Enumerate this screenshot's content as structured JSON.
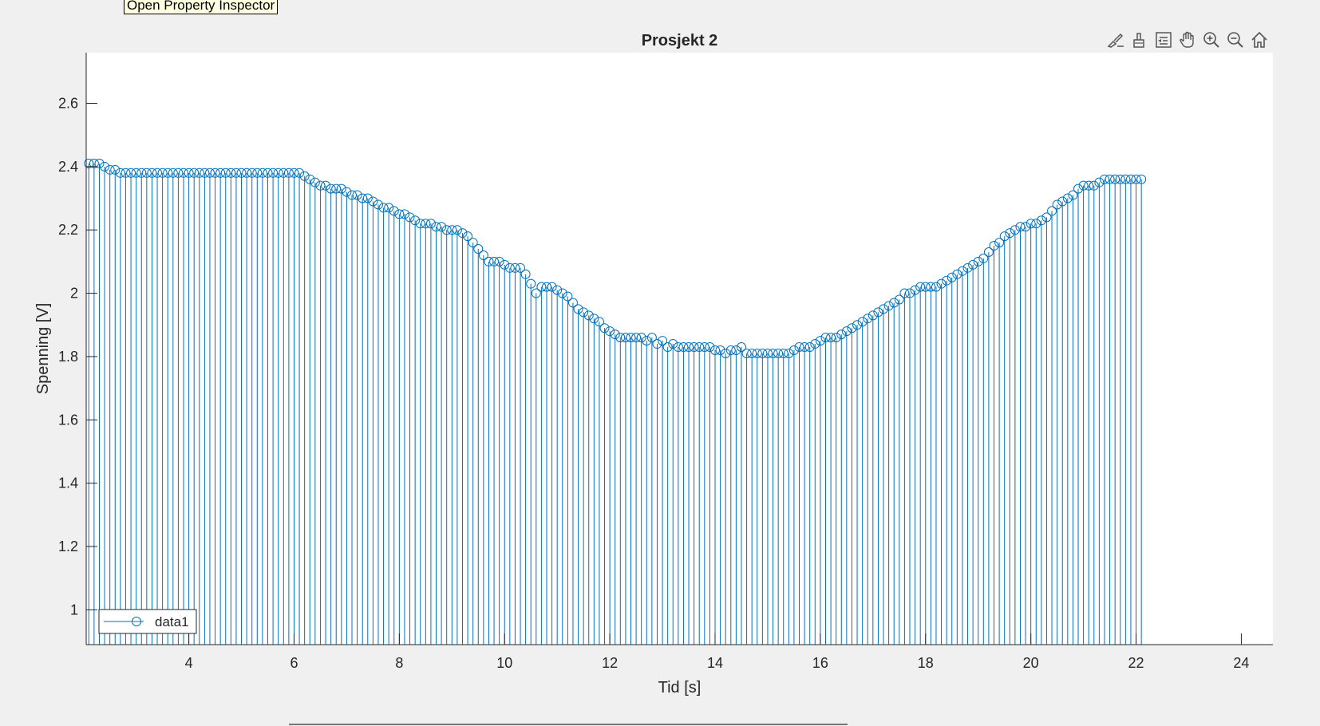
{
  "tooltip": {
    "text": "Open Property Inspector"
  },
  "toolbar": {
    "icons": [
      "brush-edit-icon",
      "data-cursor-icon",
      "legend-icon",
      "pan-hand-icon",
      "zoom-in-icon",
      "zoom-out-icon",
      "home-icon"
    ]
  },
  "colors": {
    "series": "#0072bd",
    "figure_bg": "#f0f0f0",
    "axes_bg": "#ffffff",
    "axis": "#262626"
  },
  "chart_data": {
    "type": "stem",
    "title": "Prosjekt 2",
    "xlabel": "Tid [s]",
    "ylabel": "Spenning [V]",
    "xlim": [
      2.05,
      24.6
    ],
    "ylim": [
      0.89,
      2.76
    ],
    "xticks": [
      4,
      6,
      8,
      10,
      12,
      14,
      16,
      18,
      20,
      22,
      24
    ],
    "xtick_labels": [
      "4",
      "6",
      "8",
      "10",
      "12",
      "14",
      "16",
      "18",
      "20",
      "22",
      "24"
    ],
    "yticks": [
      1,
      1.2,
      1.4,
      1.6,
      1.8,
      2,
      2.2,
      2.4,
      2.6
    ],
    "ytick_labels": [
      "1",
      "1.2",
      "1.4",
      "1.6",
      "1.8",
      "2",
      "2.2",
      "2.4",
      "2.6"
    ],
    "legend": {
      "location": "bottom-left",
      "entries": [
        "data1"
      ]
    },
    "grid": false,
    "series": [
      {
        "name": "data1",
        "marker": "circle",
        "x_start": 2.1,
        "x_step": 0.1,
        "values": [
          2.41,
          2.41,
          2.41,
          2.4,
          2.39,
          2.39,
          2.38,
          2.38,
          2.38,
          2.38,
          2.38,
          2.38,
          2.38,
          2.38,
          2.38,
          2.38,
          2.38,
          2.38,
          2.38,
          2.38,
          2.38,
          2.38,
          2.38,
          2.38,
          2.38,
          2.38,
          2.38,
          2.38,
          2.38,
          2.38,
          2.38,
          2.38,
          2.38,
          2.38,
          2.38,
          2.38,
          2.38,
          2.38,
          2.38,
          2.38,
          2.38,
          2.37,
          2.36,
          2.35,
          2.34,
          2.34,
          2.33,
          2.33,
          2.33,
          2.32,
          2.31,
          2.31,
          2.3,
          2.3,
          2.29,
          2.28,
          2.27,
          2.27,
          2.26,
          2.25,
          2.25,
          2.24,
          2.23,
          2.22,
          2.22,
          2.22,
          2.21,
          2.21,
          2.2,
          2.2,
          2.2,
          2.19,
          2.18,
          2.16,
          2.14,
          2.12,
          2.1,
          2.1,
          2.1,
          2.09,
          2.08,
          2.08,
          2.08,
          2.06,
          2.03,
          2.0,
          2.02,
          2.02,
          2.02,
          2.01,
          2.0,
          1.99,
          1.97,
          1.95,
          1.94,
          1.93,
          1.92,
          1.91,
          1.89,
          1.88,
          1.87,
          1.86,
          1.86,
          1.86,
          1.86,
          1.86,
          1.85,
          1.86,
          1.84,
          1.85,
          1.83,
          1.84,
          1.83,
          1.83,
          1.83,
          1.83,
          1.83,
          1.83,
          1.83,
          1.82,
          1.82,
          1.81,
          1.82,
          1.82,
          1.83,
          1.81,
          1.81,
          1.81,
          1.81,
          1.81,
          1.81,
          1.81,
          1.81,
          1.81,
          1.82,
          1.83,
          1.83,
          1.83,
          1.84,
          1.85,
          1.86,
          1.86,
          1.86,
          1.87,
          1.88,
          1.89,
          1.9,
          1.91,
          1.92,
          1.93,
          1.94,
          1.95,
          1.96,
          1.97,
          1.98,
          2.0,
          2.0,
          2.01,
          2.02,
          2.02,
          2.02,
          2.02,
          2.03,
          2.04,
          2.05,
          2.06,
          2.07,
          2.08,
          2.09,
          2.1,
          2.11,
          2.13,
          2.15,
          2.16,
          2.18,
          2.19,
          2.2,
          2.21,
          2.21,
          2.22,
          2.22,
          2.23,
          2.24,
          2.26,
          2.28,
          2.29,
          2.3,
          2.31,
          2.33,
          2.34,
          2.34,
          2.34,
          2.35,
          2.36,
          2.36,
          2.36,
          2.36,
          2.36,
          2.36,
          2.36,
          2.36
        ]
      }
    ]
  }
}
